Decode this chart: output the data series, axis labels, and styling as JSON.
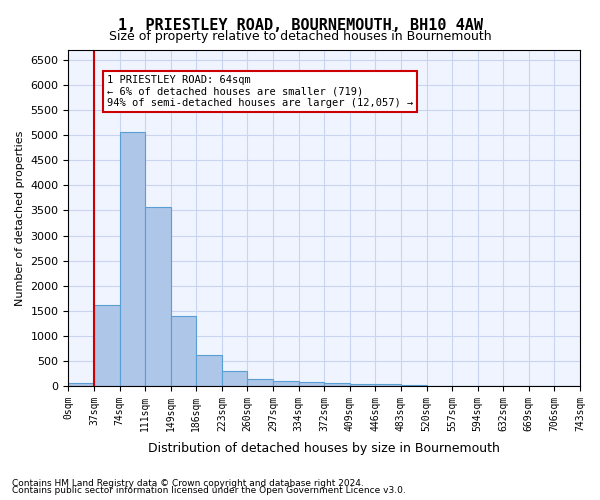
{
  "title": "1, PRIESTLEY ROAD, BOURNEMOUTH, BH10 4AW",
  "subtitle": "Size of property relative to detached houses in Bournemouth",
  "xlabel": "Distribution of detached houses by size in Bournemouth",
  "ylabel": "Number of detached properties",
  "bar_color": "#aec6e8",
  "bar_edge_color": "#5a9fd4",
  "background_color": "#f0f4ff",
  "grid_color": "#c8d4f0",
  "bins": [
    "0sqm",
    "37sqm",
    "74sqm",
    "111sqm",
    "149sqm",
    "186sqm",
    "223sqm",
    "260sqm",
    "297sqm",
    "334sqm",
    "372sqm",
    "409sqm",
    "446sqm",
    "483sqm",
    "520sqm",
    "557sqm",
    "594sqm",
    "632sqm",
    "669sqm",
    "706sqm",
    "743sqm"
  ],
  "values": [
    65,
    1620,
    5060,
    3570,
    1400,
    620,
    290,
    135,
    100,
    75,
    55,
    45,
    40,
    10,
    5,
    5,
    5,
    5,
    5,
    5
  ],
  "ylim": [
    0,
    6700
  ],
  "yticks": [
    0,
    500,
    1000,
    1500,
    2000,
    2500,
    3000,
    3500,
    4000,
    4500,
    5000,
    5500,
    6000,
    6500
  ],
  "property_line_x": 1,
  "annotation_text": "1 PRIESTLEY ROAD: 64sqm\n← 6% of detached houses are smaller (719)\n94% of semi-detached houses are larger (12,057) →",
  "annotation_box_color": "#ffffff",
  "annotation_box_edge_color": "#cc0000",
  "red_line_color": "#cc0000",
  "footer_line1": "Contains HM Land Registry data © Crown copyright and database right 2024.",
  "footer_line2": "Contains public sector information licensed under the Open Government Licence v3.0."
}
